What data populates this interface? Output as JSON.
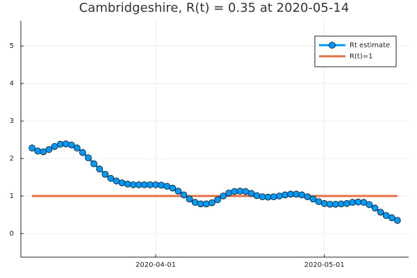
{
  "chart_data": {
    "type": "line",
    "title": "Cambridgeshire, R(t) = 0.35 at 2020-05-14",
    "x": [
      "2020-03-10",
      "2020-03-11",
      "2020-03-12",
      "2020-03-13",
      "2020-03-14",
      "2020-03-15",
      "2020-03-16",
      "2020-03-17",
      "2020-03-18",
      "2020-03-19",
      "2020-03-20",
      "2020-03-21",
      "2020-03-22",
      "2020-03-23",
      "2020-03-24",
      "2020-03-25",
      "2020-03-26",
      "2020-03-27",
      "2020-03-28",
      "2020-03-29",
      "2020-03-30",
      "2020-03-31",
      "2020-04-01",
      "2020-04-02",
      "2020-04-03",
      "2020-04-04",
      "2020-04-05",
      "2020-04-06",
      "2020-04-07",
      "2020-04-08",
      "2020-04-09",
      "2020-04-10",
      "2020-04-11",
      "2020-04-12",
      "2020-04-13",
      "2020-04-14",
      "2020-04-15",
      "2020-04-16",
      "2020-04-17",
      "2020-04-18",
      "2020-04-19",
      "2020-04-20",
      "2020-04-21",
      "2020-04-22",
      "2020-04-23",
      "2020-04-24",
      "2020-04-25",
      "2020-04-26",
      "2020-04-27",
      "2020-04-28",
      "2020-04-29",
      "2020-04-30",
      "2020-05-01",
      "2020-05-02",
      "2020-05-03",
      "2020-05-04",
      "2020-05-05",
      "2020-05-06",
      "2020-05-07",
      "2020-05-08",
      "2020-05-09",
      "2020-05-10",
      "2020-05-11",
      "2020-05-12",
      "2020-05-13",
      "2020-05-14"
    ],
    "series": [
      {
        "name": "Rt estimate",
        "color": "#009af9",
        "markers": true,
        "values": [
          2.28,
          2.2,
          2.18,
          2.24,
          2.32,
          2.38,
          2.39,
          2.36,
          2.28,
          2.16,
          2.02,
          1.86,
          1.72,
          1.58,
          1.47,
          1.4,
          1.35,
          1.32,
          1.3,
          1.3,
          1.3,
          1.3,
          1.3,
          1.29,
          1.26,
          1.21,
          1.13,
          1.03,
          0.92,
          0.83,
          0.79,
          0.79,
          0.82,
          0.9,
          1.0,
          1.08,
          1.12,
          1.13,
          1.12,
          1.07,
          1.01,
          0.98,
          0.97,
          0.98,
          1.0,
          1.03,
          1.05,
          1.05,
          1.03,
          0.98,
          0.92,
          0.85,
          0.8,
          0.78,
          0.78,
          0.79,
          0.8,
          0.83,
          0.84,
          0.83,
          0.77,
          0.68,
          0.57,
          0.48,
          0.42,
          0.35
        ]
      },
      {
        "name": "R(t)=1",
        "color": "#e26f46",
        "markers": false,
        "x": [
          "2020-03-10",
          "2020-05-14"
        ],
        "values": [
          1,
          1
        ]
      }
    ],
    "xlim": [
      "2020-03-08",
      "2020-05-16"
    ],
    "xticks": [
      "2020-04-01",
      "2020-05-01"
    ],
    "ylim": [
      -0.63,
      5.67
    ],
    "yticks": [
      0,
      1,
      2,
      3,
      4,
      5
    ],
    "grid": true,
    "legend": "top-right"
  }
}
